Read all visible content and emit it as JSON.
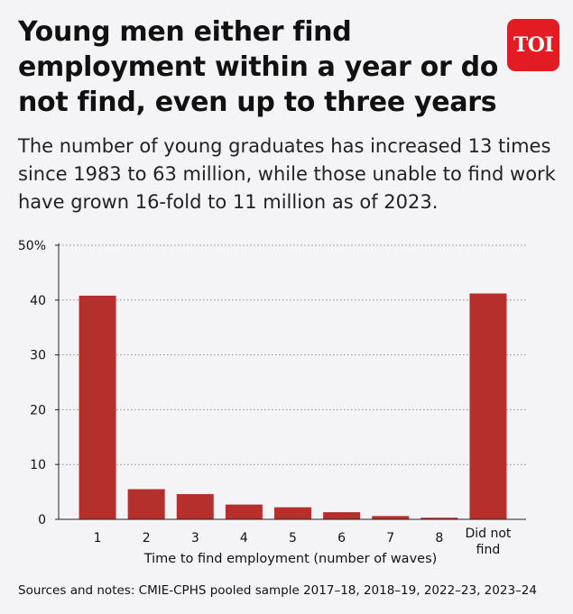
{
  "header": {
    "title": "Young men either find employment within a year or do not find, even up to three years",
    "subtitle": "The number of young graduates has increased 13 times since 1983 to 63 million, while those unable to find work have grown 16-fold to 11 million as of 2023.",
    "logo_text": "TOI"
  },
  "chart_data": {
    "type": "bar",
    "categories": [
      "1",
      "2",
      "3",
      "4",
      "5",
      "6",
      "7",
      "8",
      "Did not find"
    ],
    "values": [
      40.8,
      5.5,
      4.6,
      2.7,
      2.2,
      1.3,
      0.6,
      0.3,
      41.2
    ],
    "xlabel": "Time to find employment (number of waves)",
    "ylabel": "",
    "ylim": [
      0,
      50
    ],
    "yticks": [
      "0",
      "10",
      "20",
      "30",
      "40",
      "50%"
    ],
    "grid": true,
    "bar_color": "#b5302d"
  },
  "footer": {
    "source": "Sources and notes: CMIE-CPHS pooled sample 2017–18, 2018–19, 2022–23, 2023–24"
  }
}
